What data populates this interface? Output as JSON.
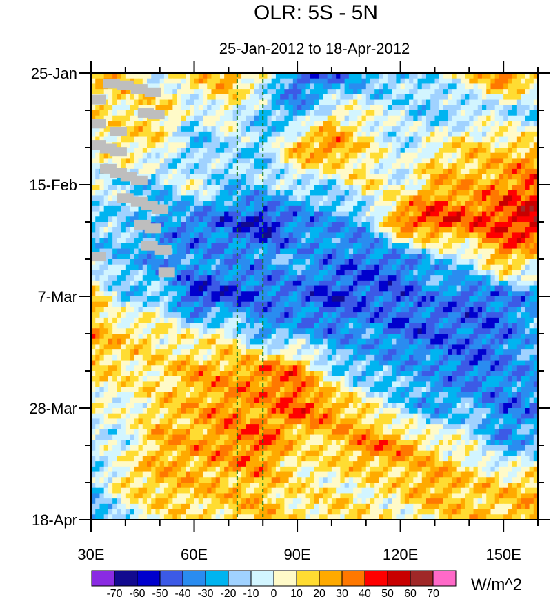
{
  "chart_data": {
    "type": "heatmap",
    "title": "OLR: 5S - 5N",
    "subtitle": "25-Jan-2012 to 18-Apr-2012",
    "xlabel": "",
    "ylabel": "",
    "x_range": [
      30,
      160
    ],
    "x_ticks": [
      30,
      60,
      90,
      120,
      150
    ],
    "x_tick_labels": [
      "30E",
      "60E",
      "90E",
      "120E",
      "150E"
    ],
    "x_minor_step": 10,
    "y_tick_labels": [
      "25-Jan",
      "15-Feb",
      "7-Mar",
      "28-Mar",
      "18-Apr"
    ],
    "y_tick_days": [
      0,
      21,
      42,
      63,
      84
    ],
    "y_total_days": 84,
    "y_minor_step_days": 7,
    "reference_lines_lon": [
      72.5,
      80
    ],
    "reference_line_color": "#1a7a1a",
    "missing_color": "#bebebe",
    "colorbar": {
      "unit": "W/m^2",
      "levels": [
        -70,
        -60,
        -50,
        -40,
        -30,
        -20,
        -10,
        0,
        10,
        20,
        30,
        40,
        50,
        60,
        70
      ],
      "level_labels": [
        "-70",
        "-60",
        "-50",
        "-40",
        "-30",
        "-20",
        "-10",
        "0",
        "10",
        "20",
        "30",
        "40",
        "50",
        "60",
        "70"
      ],
      "colors": [
        "#8a2be2",
        "#120a8f",
        "#0000cd",
        "#3c5ae6",
        "#2a8cf0",
        "#00b4f0",
        "#a0d2ff",
        "#d2f5ff",
        "#fffac8",
        "#ffdc32",
        "#ffaa00",
        "#ff7800",
        "#ff0000",
        "#c80000",
        "#a02828",
        "#ff69c8"
      ]
    },
    "grid_lon": [
      30,
      40,
      50,
      60,
      70,
      80,
      90,
      100,
      110,
      120,
      130,
      140,
      150,
      160
    ],
    "grid_days": [
      0,
      7,
      14,
      21,
      28,
      35,
      42,
      49,
      56,
      63,
      70,
      77,
      84
    ],
    "values": [
      [
        15,
        25,
        -10,
        15,
        30,
        5,
        -45,
        -45,
        -30,
        -20,
        -10,
        10,
        40,
        20
      ],
      [
        10,
        5,
        20,
        -10,
        5,
        -20,
        -35,
        5,
        0,
        -10,
        -20,
        -15,
        -10,
        -20
      ],
      [
        0,
        15,
        5,
        -25,
        -10,
        -20,
        25,
        35,
        10,
        -10,
        5,
        15,
        15,
        20
      ],
      [
        0,
        -15,
        -20,
        5,
        -20,
        -15,
        -10,
        -15,
        10,
        -5,
        25,
        20,
        30,
        40
      ],
      [
        -20,
        -15,
        -30,
        -40,
        -45,
        -60,
        -40,
        -30,
        -25,
        40,
        45,
        40,
        45,
        55
      ],
      [
        -15,
        -20,
        -35,
        -30,
        -30,
        -30,
        -25,
        -35,
        -45,
        -40,
        -20,
        -10,
        30,
        10
      ],
      [
        20,
        -20,
        -10,
        -55,
        -50,
        -45,
        -40,
        -50,
        -45,
        -45,
        -35,
        -45,
        -40,
        -30
      ],
      [
        25,
        15,
        10,
        0,
        5,
        -30,
        -25,
        -35,
        -30,
        -40,
        -45,
        -40,
        -40,
        -20
      ],
      [
        15,
        10,
        10,
        25,
        25,
        35,
        35,
        -10,
        -25,
        -25,
        -30,
        -45,
        -35,
        -30
      ],
      [
        0,
        0,
        15,
        20,
        30,
        25,
        40,
        30,
        10,
        -15,
        -30,
        -20,
        -40,
        -35
      ],
      [
        -10,
        -5,
        25,
        25,
        30,
        40,
        10,
        15,
        35,
        30,
        10,
        0,
        -30,
        -20
      ],
      [
        -20,
        15,
        20,
        20,
        20,
        20,
        10,
        5,
        5,
        15,
        30,
        15,
        15,
        20
      ],
      [
        -30,
        -10,
        10,
        10,
        15,
        20,
        10,
        15,
        10,
        0,
        10,
        20,
        20,
        25
      ]
    ],
    "missing_cells": [
      {
        "lon": 36,
        "day": 2.0
      },
      {
        "lon": 40,
        "day": 2.3
      },
      {
        "lon": 44,
        "day": 3.0
      },
      {
        "lon": 48,
        "day": 3.6
      },
      {
        "lon": 32,
        "day": 5.0
      },
      {
        "lon": 46,
        "day": 7.5
      },
      {
        "lon": 49,
        "day": 7.8
      },
      {
        "lon": 32,
        "day": 9.5
      },
      {
        "lon": 38,
        "day": 11.0
      },
      {
        "lon": 32,
        "day": 13.5
      },
      {
        "lon": 35,
        "day": 14.2
      },
      {
        "lon": 38,
        "day": 14.8
      },
      {
        "lon": 35,
        "day": 18.0
      },
      {
        "lon": 38,
        "day": 18.8
      },
      {
        "lon": 41,
        "day": 19.5
      },
      {
        "lon": 44,
        "day": 20.2
      },
      {
        "lon": 40,
        "day": 23.5
      },
      {
        "lon": 44,
        "day": 24.2
      },
      {
        "lon": 47,
        "day": 24.9
      },
      {
        "lon": 50,
        "day": 25.6
      },
      {
        "lon": 45,
        "day": 28.5
      },
      {
        "lon": 48,
        "day": 29.2
      },
      {
        "lon": 47,
        "day": 32.5
      },
      {
        "lon": 51,
        "day": 33.3
      },
      {
        "lon": 32,
        "day": 34.5
      },
      {
        "lon": 52,
        "day": 37.5
      }
    ]
  }
}
